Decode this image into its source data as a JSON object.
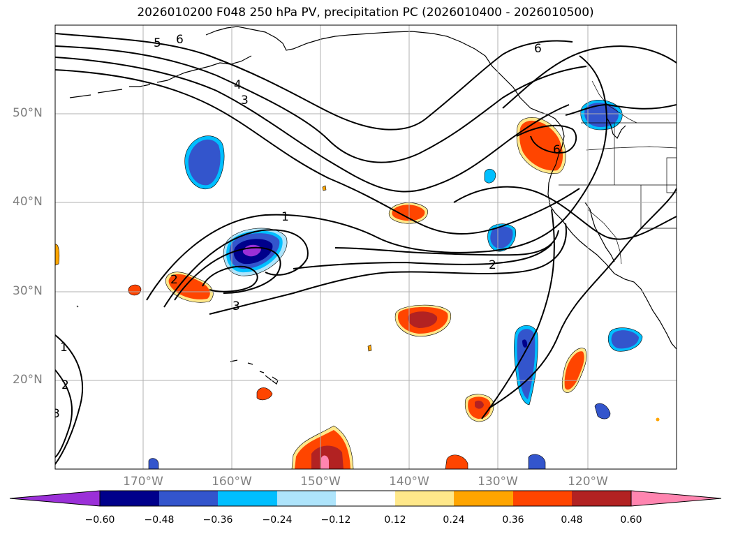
{
  "title": "2026010200 F048 250 hPa PV, precipitation PC (2026010400 - 2026010500)",
  "lat_labels": [
    "50°N",
    "40°N",
    "30°N",
    "20°N"
  ],
  "lon_labels": [
    "170°W",
    "160°W",
    "150°W",
    "140°W",
    "130°W",
    "120°W"
  ],
  "contour_labels": [
    "5",
    "6",
    "4",
    "3",
    "1",
    "2",
    "3",
    "2",
    "6",
    "6",
    "1",
    "2",
    "3"
  ],
  "colorbar": {
    "ticks": [
      "−0.60",
      "−0.48",
      "−0.36",
      "−0.24",
      "−0.12",
      "0.12",
      "0.24",
      "0.36",
      "0.48",
      "0.60"
    ],
    "colors": [
      "#9b30d8",
      "#00008b",
      "#3355cc",
      "#00bfff",
      "#aee4fb",
      "#ffffff",
      "#ffe88a",
      "#ffa500",
      "#ff4500",
      "#b22222",
      "#ff85b0"
    ]
  },
  "colors": {
    "purple": "#9b30d8",
    "navy": "#00008b",
    "blue": "#3355cc",
    "skyblue": "#00bfff",
    "lightblue": "#aee4fb",
    "yellow": "#ffe88a",
    "orange": "#ffa500",
    "orangered": "#ff4500",
    "red": "#b22222",
    "pink": "#ff85b0"
  }
}
